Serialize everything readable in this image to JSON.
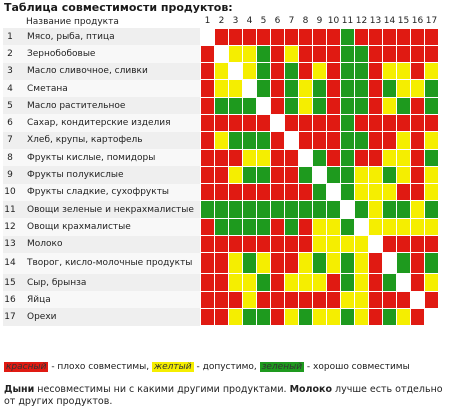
{
  "title": "Таблица совместимости продуктов:",
  "header": {
    "product_col": "Название продукта"
  },
  "columns": [
    "1",
    "2",
    "3",
    "4",
    "5",
    "6",
    "7",
    "8",
    "9",
    "10",
    "11",
    "12",
    "13",
    "14",
    "15",
    "16",
    "17"
  ],
  "products": [
    {
      "num": "1",
      "name": "Мясо, рыба, птица"
    },
    {
      "num": "2",
      "name": "Зернобобовые"
    },
    {
      "num": "3",
      "name": "Масло сливочное, сливки"
    },
    {
      "num": "4",
      "name": "Сметана"
    },
    {
      "num": "5",
      "name": "Масло растительное"
    },
    {
      "num": "6",
      "name": "Сахар, кондитерские изделия"
    },
    {
      "num": "7",
      "name": "Хлеб, крупы, картофель"
    },
    {
      "num": "8",
      "name": "Фрукты кислые, помидоры"
    },
    {
      "num": "9",
      "name": "Фрукты полукислые"
    },
    {
      "num": "10",
      "name": "Фрукты сладкие, сухофрукты"
    },
    {
      "num": "11",
      "name": "Овощи зеленые и некрахмалистые"
    },
    {
      "num": "12",
      "name": "Овощи крахмалистые"
    },
    {
      "num": "13",
      "name": "Молоко"
    },
    {
      "num": "14",
      "name": "Творог, кисло-молочные продукты"
    },
    {
      "num": "15",
      "name": "Сыр, брынза"
    },
    {
      "num": "16",
      "name": "Яйца"
    },
    {
      "num": "17",
      "name": "Орехи"
    }
  ],
  "matrix": [
    "WRRRRRRRRRGRRRRRR",
    "RWYYGRYRRRGGRRRRR",
    "RYWYGRGRYRGGRYYRY",
    "RYYWGRGYGRGGRGYYG",
    "RGGGWRGYGRGGRYGRG",
    "RRRRRWRRRRGRRRRRR",
    "RYGGGRWRRRGGRRYRY",
    "RRRYYRRWGRGRRYYRG",
    "RRYGGRRGWGGYYGYRY",
    "RRRRRRRRGWGYYYRRY",
    "GGGGGGGGGGWGYGGYG",
    "RGGGGRGRYYGWYYYYY",
    "RRRRRRRRYYYYWRRRR",
    "RRYGYRRYGYGYRWGRG",
    "RRYYGRYYYRGYRGWRY",
    "RRRYRRRRRRYYRRRWR",
    "RRYGGRYGYYGYRGYRW"
  ],
  "colors": {
    "R": "#e01a12",
    "Y": "#f5ee00",
    "G": "#1e9a1e",
    "W": "#ffffff"
  },
  "legend": {
    "red": {
      "label": "красный",
      "text": " - плохо совместимы,"
    },
    "yellow": {
      "label": "желтый",
      "text": " - допустимо,"
    },
    "green": {
      "label": "зеленый",
      "text": " - хорошо совместимы"
    }
  },
  "note": {
    "b1": "Дыни",
    "t1": " несовместимы ни с какими другими продуктами. ",
    "b2": "Молоко",
    "t2": " лучше есть отдельно от других продуктов."
  }
}
